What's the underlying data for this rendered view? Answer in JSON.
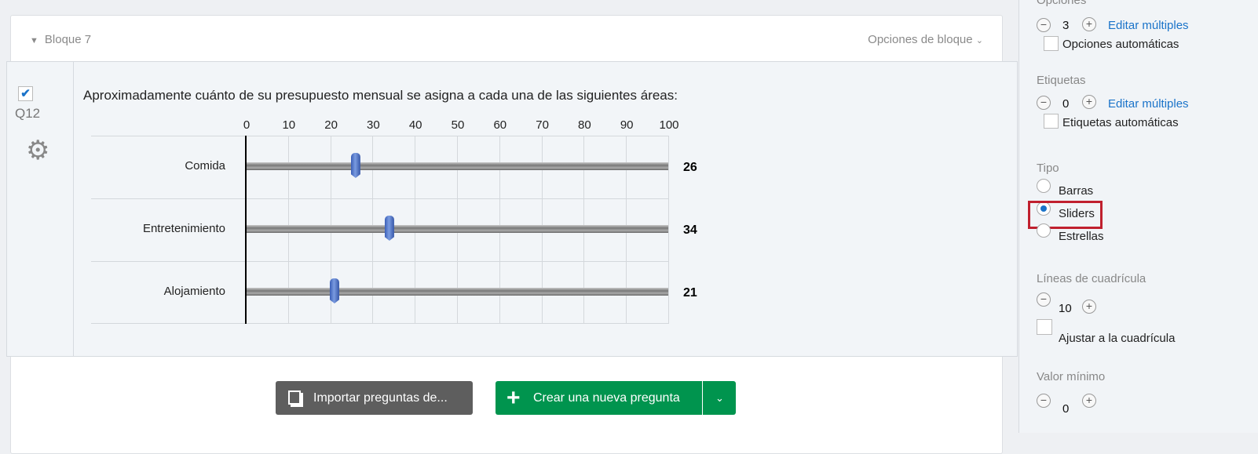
{
  "block": {
    "title": "Bloque 7",
    "options_label": "Opciones de bloque"
  },
  "question": {
    "id": "Q12",
    "selected": true,
    "text": "Aproximadamente cuánto de su presupuesto mensual se asigna a cada una de las siguientes áreas:"
  },
  "chart_data": {
    "type": "slider",
    "xlim": [
      0,
      100
    ],
    "ticks": [
      "0",
      "10",
      "20",
      "30",
      "40",
      "50",
      "60",
      "70",
      "80",
      "90",
      "100"
    ],
    "grid": true,
    "categories": [
      "Comida",
      "Entretenimiento",
      "Alojamiento"
    ],
    "values": [
      26,
      34,
      21
    ],
    "value_labels": [
      "26",
      "34",
      "21"
    ],
    "handle_color": "#4a6fc9"
  },
  "buttons": {
    "import": "Importar preguntas de...",
    "create": "Crear una nueva pregunta"
  },
  "sidebar": {
    "opciones": {
      "title": "Opciones",
      "count": "3",
      "edit": "Editar múltiples",
      "auto": "Opciones automáticas",
      "auto_checked": false
    },
    "etiquetas": {
      "title": "Etiquetas",
      "count": "0",
      "edit": "Editar múltiples",
      "auto": "Etiquetas automáticas",
      "auto_checked": false
    },
    "tipo": {
      "title": "Tipo",
      "options": [
        "Barras",
        "Sliders",
        "Estrellas"
      ],
      "selected": "Sliders"
    },
    "grid": {
      "title": "Líneas de cuadrícula",
      "count": "10",
      "snap": "Ajustar a la cuadrícula",
      "snap_checked": false
    },
    "min": {
      "title": "Valor mínimo",
      "count": "0"
    },
    "accent": "#1a73c9",
    "highlight": "#c0202e"
  }
}
